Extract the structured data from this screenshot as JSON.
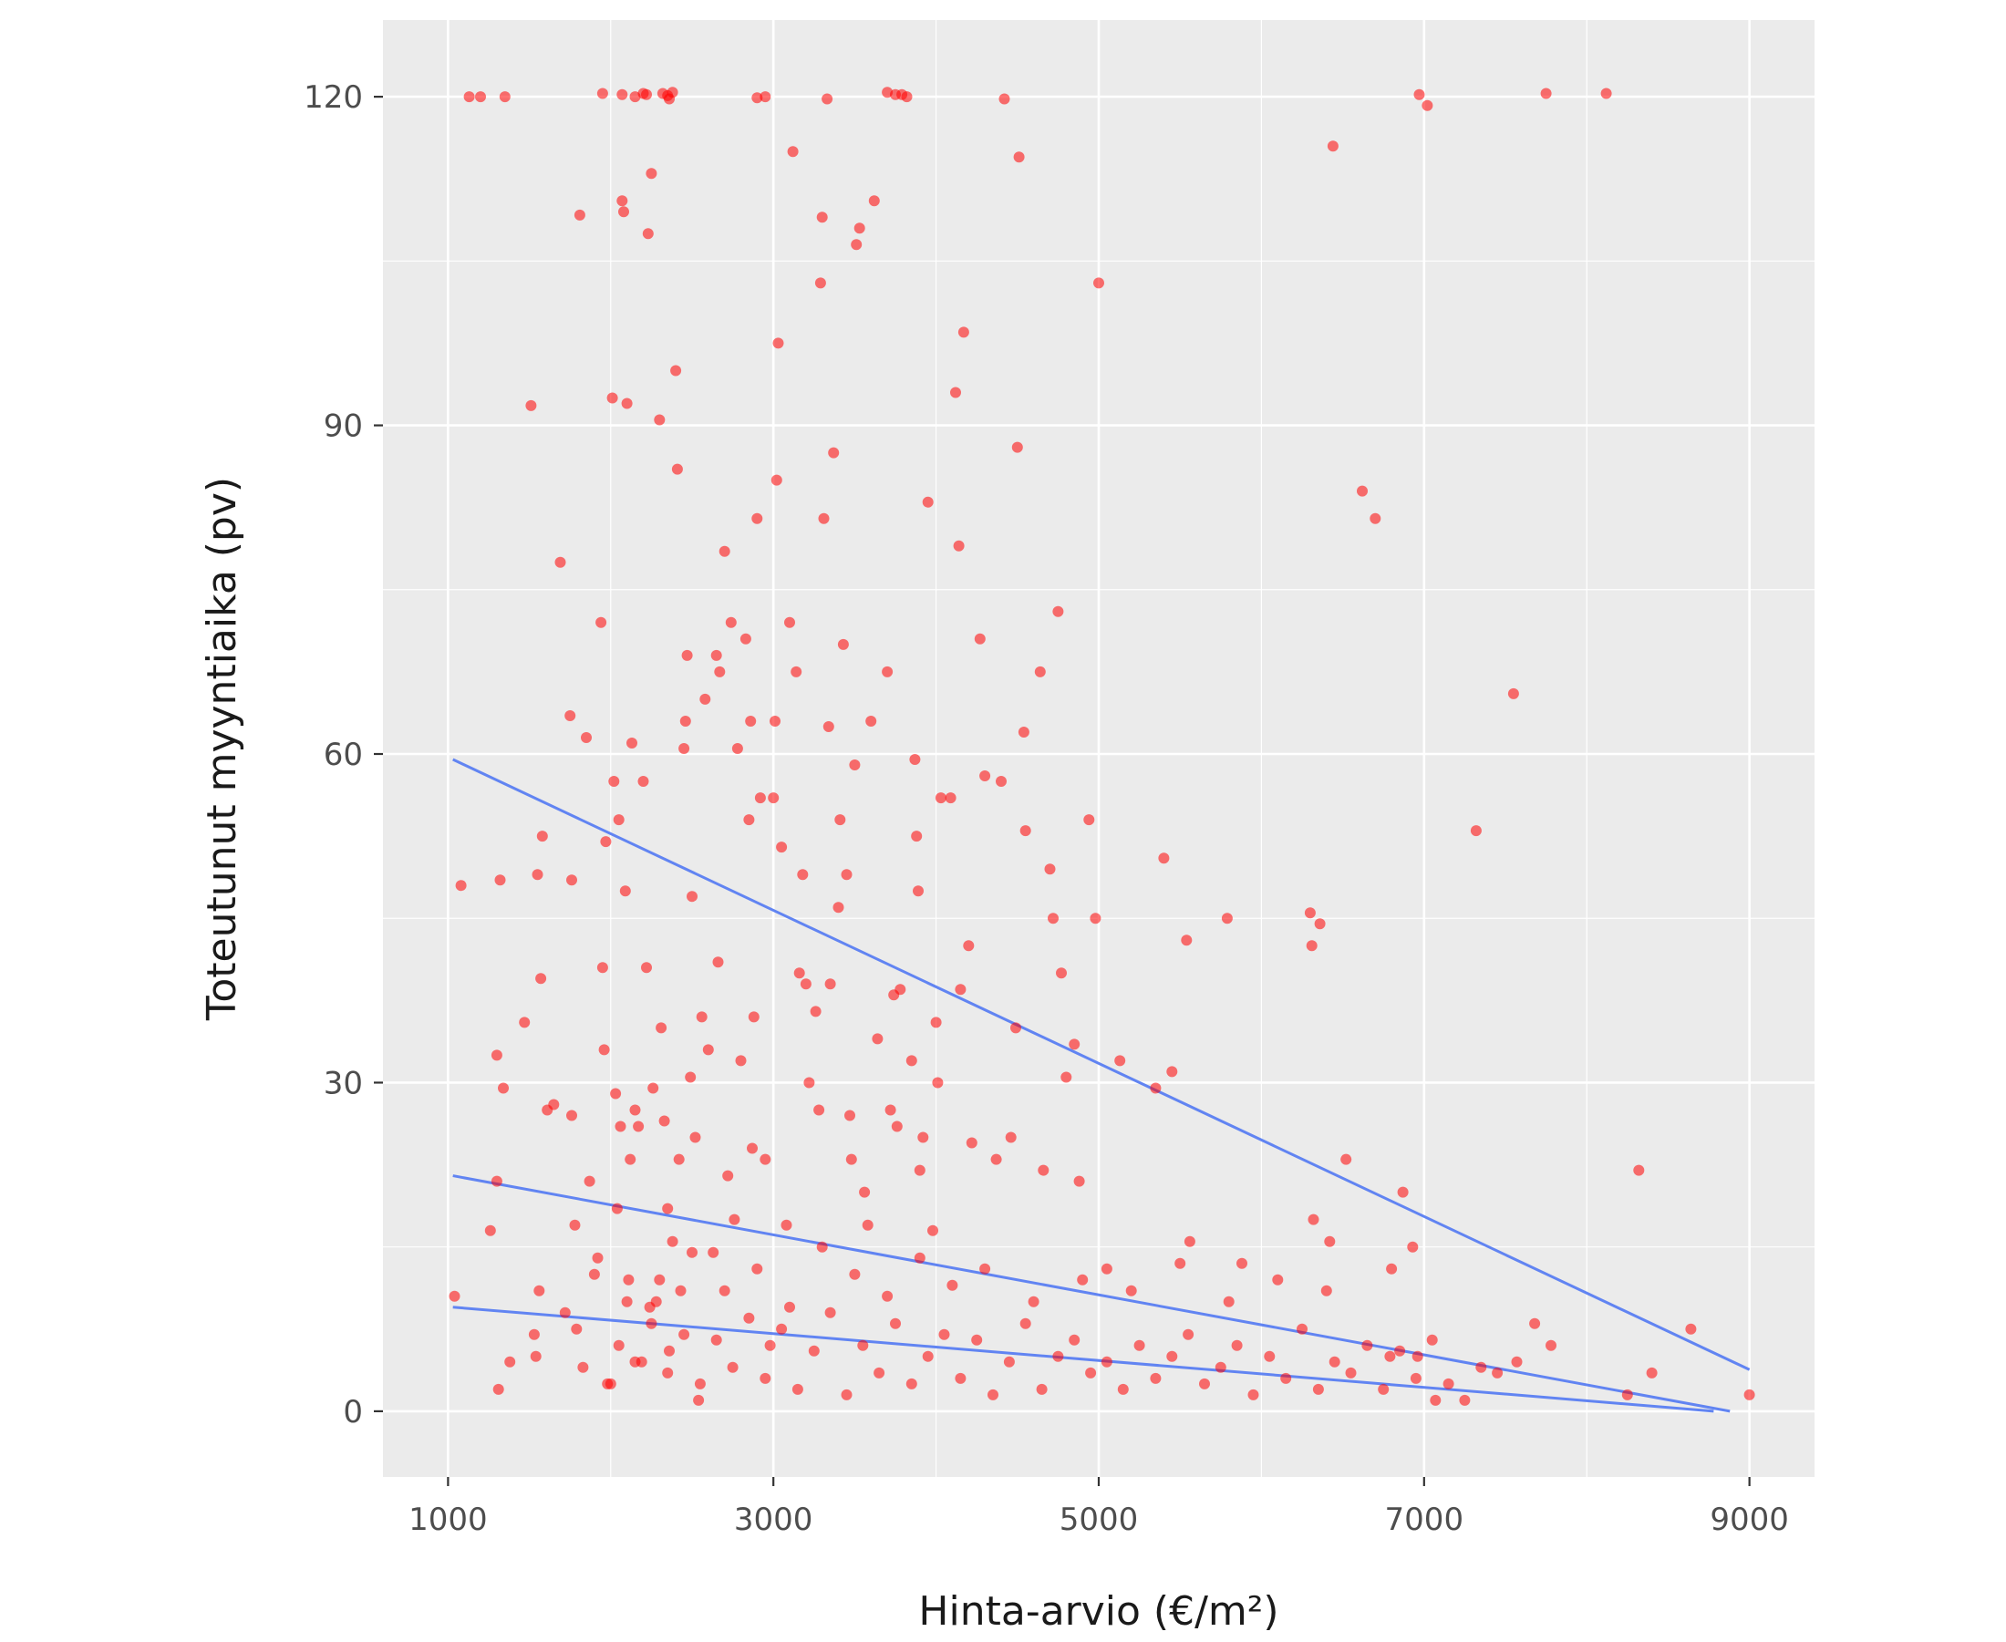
{
  "chart_data": {
    "type": "scatter",
    "title": "",
    "xlabel": "Hinta-arvio (€/m²)",
    "ylabel": "Toteutunut myyntiaika (pv)",
    "xlim": [
      600,
      9400
    ],
    "ylim": [
      -6,
      127
    ],
    "x_ticks": [
      1000,
      3000,
      5000,
      7000,
      9000
    ],
    "x_tick_labels": [
      "1000",
      "3000",
      "5000",
      "7000",
      "9000"
    ],
    "y_ticks": [
      0,
      30,
      60,
      90,
      120
    ],
    "y_tick_labels": [
      "0",
      "30",
      "60",
      "90",
      "120"
    ],
    "grid": true,
    "legend": "none",
    "colors": {
      "panel": "#ebebeb",
      "grid": "#ffffff",
      "points": "#ff0000",
      "lines": "#6184f2"
    },
    "series": [
      {
        "type": "scatter",
        "points": [
          [
            1130,
            120
          ],
          [
            1200,
            120
          ],
          [
            1350,
            120
          ],
          [
            1950,
            120.3
          ],
          [
            2070,
            120.2
          ],
          [
            2150,
            120
          ],
          [
            2200,
            120.3
          ],
          [
            2220,
            120.2
          ],
          [
            2320,
            120.3
          ],
          [
            2350,
            120.1
          ],
          [
            2380,
            120.4
          ],
          [
            2360,
            119.8
          ],
          [
            2900,
            119.9
          ],
          [
            2950,
            120
          ],
          [
            3330,
            119.8
          ],
          [
            3700,
            120.4
          ],
          [
            3750,
            120.2
          ],
          [
            3790,
            120.2
          ],
          [
            3820,
            120
          ],
          [
            4420,
            119.8
          ],
          [
            6970,
            120.2
          ],
          [
            7020,
            119.2
          ],
          [
            7750,
            120.3
          ],
          [
            8120,
            120.3
          ],
          [
            1040,
            10.5
          ],
          [
            1080,
            48
          ],
          [
            1260,
            16.5
          ],
          [
            1300,
            32.5
          ],
          [
            1300,
            21
          ],
          [
            1310,
            2
          ],
          [
            1320,
            48.5
          ],
          [
            1340,
            29.5
          ],
          [
            1380,
            4.5
          ],
          [
            1470,
            35.5
          ],
          [
            1510,
            91.8
          ],
          [
            1530,
            7
          ],
          [
            1540,
            5
          ],
          [
            1550,
            49
          ],
          [
            1560,
            11
          ],
          [
            1570,
            39.5
          ],
          [
            1580,
            52.5
          ],
          [
            1610,
            27.5
          ],
          [
            1650,
            28
          ],
          [
            1690,
            77.5
          ],
          [
            1720,
            9
          ],
          [
            1750,
            63.5
          ],
          [
            1760,
            48.5
          ],
          [
            1760,
            27
          ],
          [
            1780,
            17
          ],
          [
            1790,
            7.5
          ],
          [
            1810,
            109.2
          ],
          [
            1830,
            4
          ],
          [
            1850,
            61.5
          ],
          [
            1870,
            21
          ],
          [
            1900,
            12.5
          ],
          [
            1920,
            14
          ],
          [
            1940,
            72
          ],
          [
            1950,
            40.5
          ],
          [
            1960,
            33
          ],
          [
            1970,
            52
          ],
          [
            1980,
            2.5
          ],
          [
            2000,
            2.5
          ],
          [
            2010,
            92.5
          ],
          [
            2020,
            57.5
          ],
          [
            2030,
            29
          ],
          [
            2040,
            18.5
          ],
          [
            2050,
            54
          ],
          [
            2060,
            26
          ],
          [
            2070,
            110.5
          ],
          [
            2080,
            109.5
          ],
          [
            2090,
            47.5
          ],
          [
            2100,
            92
          ],
          [
            2110,
            12
          ],
          [
            2120,
            23
          ],
          [
            2130,
            61
          ],
          [
            2150,
            27.5
          ],
          [
            2170,
            26
          ],
          [
            2190,
            4.5
          ],
          [
            2200,
            57.5
          ],
          [
            2220,
            40.5
          ],
          [
            2230,
            107.5
          ],
          [
            2240,
            9.5
          ],
          [
            2250,
            113
          ],
          [
            2260,
            29.5
          ],
          [
            2280,
            10
          ],
          [
            2300,
            90.5
          ],
          [
            2310,
            35
          ],
          [
            2330,
            26.5
          ],
          [
            2350,
            18.5
          ],
          [
            2360,
            5.5
          ],
          [
            2380,
            15.5
          ],
          [
            2400,
            95
          ],
          [
            2410,
            86
          ],
          [
            2420,
            23
          ],
          [
            2430,
            11
          ],
          [
            2450,
            60.5
          ],
          [
            2460,
            63
          ],
          [
            2470,
            69
          ],
          [
            2490,
            30.5
          ],
          [
            2500,
            47
          ],
          [
            2520,
            25
          ],
          [
            2540,
            1
          ],
          [
            2560,
            36
          ],
          [
            2580,
            65
          ],
          [
            2600,
            33
          ],
          [
            2630,
            14.5
          ],
          [
            2650,
            69
          ],
          [
            2660,
            41
          ],
          [
            2670,
            67.5
          ],
          [
            2700,
            78.5
          ],
          [
            2720,
            21.5
          ],
          [
            2740,
            72
          ],
          [
            2760,
            17.5
          ],
          [
            2780,
            60.5
          ],
          [
            2800,
            32
          ],
          [
            2830,
            70.5
          ],
          [
            2850,
            54
          ],
          [
            2860,
            63
          ],
          [
            2870,
            24
          ],
          [
            2880,
            36
          ],
          [
            2900,
            81.5
          ],
          [
            2920,
            56
          ],
          [
            2950,
            23
          ],
          [
            2980,
            6
          ],
          [
            3000,
            56
          ],
          [
            3010,
            63
          ],
          [
            3020,
            85
          ],
          [
            3030,
            97.5
          ],
          [
            3050,
            51.5
          ],
          [
            3080,
            17
          ],
          [
            3100,
            72
          ],
          [
            3120,
            115
          ],
          [
            3140,
            67.5
          ],
          [
            3160,
            40
          ],
          [
            3180,
            49
          ],
          [
            3200,
            39
          ],
          [
            3220,
            30
          ],
          [
            3260,
            36.5
          ],
          [
            3280,
            27.5
          ],
          [
            3290,
            103
          ],
          [
            3300,
            109
          ],
          [
            3310,
            81.5
          ],
          [
            3340,
            62.5
          ],
          [
            3350,
            39
          ],
          [
            3370,
            87.5
          ],
          [
            3400,
            46
          ],
          [
            3410,
            54
          ],
          [
            3430,
            70
          ],
          [
            3450,
            49
          ],
          [
            3470,
            27
          ],
          [
            3480,
            23
          ],
          [
            3500,
            59
          ],
          [
            3510,
            106.5
          ],
          [
            3530,
            108
          ],
          [
            3560,
            20
          ],
          [
            3580,
            17
          ],
          [
            3600,
            63
          ],
          [
            3620,
            110.5
          ],
          [
            3640,
            34
          ],
          [
            3700,
            67.5
          ],
          [
            3720,
            27.5
          ],
          [
            3740,
            38
          ],
          [
            3760,
            26
          ],
          [
            3780,
            38.5
          ],
          [
            3850,
            32
          ],
          [
            3870,
            59.5
          ],
          [
            3880,
            52.5
          ],
          [
            3890,
            47.5
          ],
          [
            3900,
            22
          ],
          [
            3920,
            25
          ],
          [
            3950,
            83
          ],
          [
            3980,
            16.5
          ],
          [
            4000,
            35.5
          ],
          [
            4010,
            30
          ],
          [
            4030,
            56
          ],
          [
            4090,
            56
          ],
          [
            4120,
            93
          ],
          [
            4140,
            79
          ],
          [
            4150,
            38.5
          ],
          [
            4170,
            98.5
          ],
          [
            4200,
            42.5
          ],
          [
            4220,
            24.5
          ],
          [
            4270,
            70.5
          ],
          [
            4300,
            58
          ],
          [
            4370,
            23
          ],
          [
            4400,
            57.5
          ],
          [
            4460,
            25
          ],
          [
            4490,
            35
          ],
          [
            4500,
            88
          ],
          [
            4510,
            114.5
          ],
          [
            4540,
            62
          ],
          [
            4550,
            53
          ],
          [
            4640,
            67.5
          ],
          [
            4660,
            22
          ],
          [
            4700,
            49.5
          ],
          [
            4720,
            45
          ],
          [
            4750,
            73
          ],
          [
            4770,
            40
          ],
          [
            4800,
            30.5
          ],
          [
            4850,
            33.5
          ],
          [
            4880,
            21
          ],
          [
            4940,
            54
          ],
          [
            4980,
            45
          ],
          [
            5000,
            103
          ],
          [
            5050,
            13
          ],
          [
            5130,
            32
          ],
          [
            5350,
            29.5
          ],
          [
            5400,
            50.5
          ],
          [
            5450,
            31
          ],
          [
            5540,
            43
          ],
          [
            5560,
            15.5
          ],
          [
            5790,
            45
          ],
          [
            5880,
            13.5
          ],
          [
            6300,
            45.5
          ],
          [
            6310,
            42.5
          ],
          [
            6320,
            17.5
          ],
          [
            6360,
            44.5
          ],
          [
            6420,
            15.5
          ],
          [
            6440,
            115.5
          ],
          [
            6520,
            23
          ],
          [
            6620,
            84
          ],
          [
            6700,
            81.5
          ],
          [
            6790,
            5
          ],
          [
            6870,
            20
          ],
          [
            6930,
            15
          ],
          [
            6960,
            5
          ],
          [
            7070,
            1
          ],
          [
            7320,
            53
          ],
          [
            7550,
            65.5
          ],
          [
            7570,
            4.5
          ],
          [
            7680,
            8
          ],
          [
            7780,
            6
          ],
          [
            8250,
            1.5
          ],
          [
            8320,
            22
          ],
          [
            8400,
            3.5
          ],
          [
            8640,
            7.5
          ],
          [
            9000,
            1.5
          ],
          [
            2050,
            6
          ],
          [
            2150,
            4.5
          ],
          [
            2250,
            8
          ],
          [
            2350,
            3.5
          ],
          [
            2450,
            7
          ],
          [
            2550,
            2.5
          ],
          [
            2650,
            6.5
          ],
          [
            2750,
            4
          ],
          [
            2850,
            8.5
          ],
          [
            2950,
            3
          ],
          [
            3050,
            7.5
          ],
          [
            3150,
            2
          ],
          [
            3250,
            5.5
          ],
          [
            3350,
            9
          ],
          [
            3450,
            1.5
          ],
          [
            3550,
            6
          ],
          [
            3650,
            3.5
          ],
          [
            3750,
            8
          ],
          [
            3850,
            2.5
          ],
          [
            3950,
            5
          ],
          [
            4050,
            7
          ],
          [
            4150,
            3
          ],
          [
            4250,
            6.5
          ],
          [
            4350,
            1.5
          ],
          [
            4450,
            4.5
          ],
          [
            4550,
            8
          ],
          [
            4650,
            2
          ],
          [
            4750,
            5
          ],
          [
            4850,
            6.5
          ],
          [
            4950,
            3.5
          ],
          [
            5050,
            4.5
          ],
          [
            5150,
            2
          ],
          [
            5250,
            6
          ],
          [
            5350,
            3
          ],
          [
            5450,
            5
          ],
          [
            5550,
            7
          ],
          [
            5650,
            2.5
          ],
          [
            5750,
            4
          ],
          [
            5850,
            6
          ],
          [
            5950,
            1.5
          ],
          [
            6050,
            5
          ],
          [
            6150,
            3
          ],
          [
            6250,
            7.5
          ],
          [
            6350,
            2
          ],
          [
            6450,
            4.5
          ],
          [
            6550,
            3.5
          ],
          [
            6650,
            6
          ],
          [
            6750,
            2
          ],
          [
            6850,
            5.5
          ],
          [
            6950,
            3
          ],
          [
            7050,
            6.5
          ],
          [
            7150,
            2.5
          ],
          [
            7250,
            1
          ],
          [
            7350,
            4
          ],
          [
            7450,
            3.5
          ],
          [
            2100,
            10
          ],
          [
            2300,
            12
          ],
          [
            2500,
            14.5
          ],
          [
            2700,
            11
          ],
          [
            2900,
            13
          ],
          [
            3100,
            9.5
          ],
          [
            3300,
            15
          ],
          [
            3500,
            12.5
          ],
          [
            3700,
            10.5
          ],
          [
            3900,
            14
          ],
          [
            4100,
            11.5
          ],
          [
            4300,
            13
          ],
          [
            4600,
            10
          ],
          [
            4900,
            12
          ],
          [
            5200,
            11
          ],
          [
            5500,
            13.5
          ],
          [
            5800,
            10
          ],
          [
            6100,
            12
          ],
          [
            6400,
            11
          ],
          [
            6800,
            13
          ]
        ]
      }
    ],
    "trend_lines": [
      {
        "x": [
          1030,
          9000
        ],
        "y": [
          59.5,
          3.8
        ]
      },
      {
        "x": [
          1030,
          8880
        ],
        "y": [
          21.5,
          0
        ]
      },
      {
        "x": [
          1030,
          8780
        ],
        "y": [
          9.5,
          0
        ]
      }
    ]
  }
}
